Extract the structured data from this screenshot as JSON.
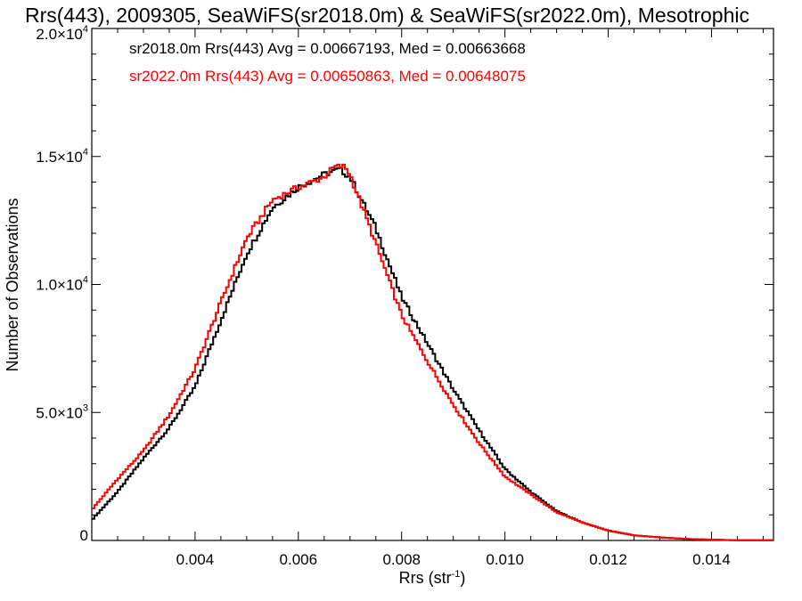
{
  "chart_data": {
    "type": "line",
    "title": "Rrs(443), 2009305, SeaWiFS(sr2018.0m) & SeaWiFS(sr2022.0m), Mesotrophic",
    "xlabel": "Rrs (str⁻¹)",
    "ylabel": "Number of Observations",
    "xlim": [
      0.002,
      0.0152
    ],
    "ylim": [
      0,
      20000
    ],
    "xticks": [
      {
        "value": 0.004,
        "label": "0.004"
      },
      {
        "value": 0.006,
        "label": "0.006"
      },
      {
        "value": 0.008,
        "label": "0.008"
      },
      {
        "value": 0.01,
        "label": "0.010"
      },
      {
        "value": 0.012,
        "label": "0.012"
      },
      {
        "value": 0.014,
        "label": "0.014"
      }
    ],
    "yticks": [
      {
        "value": 0,
        "mantissa": "0",
        "exponent": ""
      },
      {
        "value": 5000,
        "mantissa": "5.0×10",
        "exponent": "3"
      },
      {
        "value": 10000,
        "mantissa": "1.0×10",
        "exponent": "4"
      },
      {
        "value": 15000,
        "mantissa": "1.5×10",
        "exponent": "4"
      },
      {
        "value": 20000,
        "mantissa": "2.0×10",
        "exponent": "4"
      }
    ],
    "grid": false,
    "legend_position": "top-left",
    "legend": [
      {
        "text": "sr2018.0m Rrs(443) Avg = 0.00667193, Med = 0.00663668",
        "color": "#000000"
      },
      {
        "text": "sr2022.0m Rrs(443) Avg = 0.00650863, Med = 0.00648075",
        "color": "#ff0000"
      }
    ],
    "series": [
      {
        "color": "#000000",
        "x": [
          0.002,
          0.0025,
          0.003,
          0.0035,
          0.004,
          0.0045,
          0.005,
          0.0055,
          0.006,
          0.0065,
          0.0068,
          0.007,
          0.0075,
          0.008,
          0.0085,
          0.009,
          0.0095,
          0.01,
          0.0105,
          0.011,
          0.0115,
          0.012,
          0.0125,
          0.013,
          0.0135,
          0.014,
          0.0145,
          0.0152
        ],
        "y": [
          800,
          1900,
          3200,
          4400,
          6000,
          8600,
          11200,
          13000,
          13800,
          14300,
          14500,
          14200,
          12200,
          9500,
          7700,
          5900,
          4300,
          2800,
          1900,
          1150,
          700,
          390,
          200,
          120,
          60,
          30,
          10,
          5
        ]
      },
      {
        "color": "#ff0000",
        "x": [
          0.002,
          0.0025,
          0.003,
          0.0035,
          0.004,
          0.0045,
          0.005,
          0.0055,
          0.006,
          0.0065,
          0.0067,
          0.0069,
          0.007,
          0.0075,
          0.008,
          0.0085,
          0.009,
          0.0095,
          0.01,
          0.0105,
          0.011,
          0.0115,
          0.012,
          0.0125,
          0.013,
          0.0135,
          0.014,
          0.0145,
          0.0152
        ],
        "y": [
          1200,
          2400,
          3500,
          4900,
          6700,
          9300,
          11800,
          13300,
          13800,
          14200,
          14600,
          14600,
          14300,
          11600,
          8800,
          7000,
          5300,
          3800,
          2500,
          1800,
          1100,
          700,
          380,
          200,
          120,
          60,
          30,
          10,
          5
        ]
      }
    ]
  }
}
